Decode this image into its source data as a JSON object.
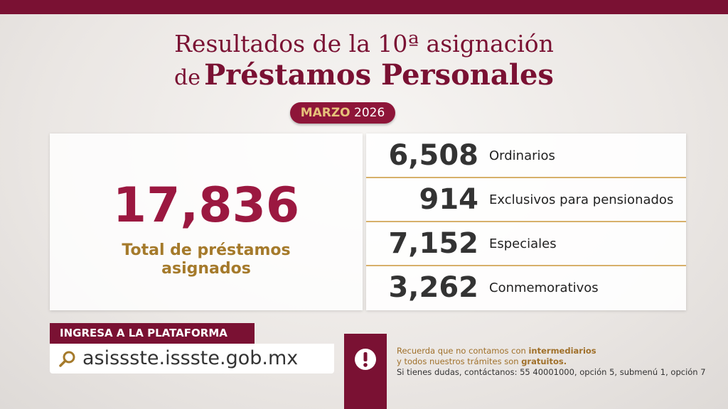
{
  "header": {
    "title_line_1": "Resultados de la 10ª asignación",
    "title_line_2_prefix": "de",
    "title_line_2_main": "Préstamos Personales",
    "month": "MARZO",
    "year": "2026"
  },
  "total": {
    "value": "17,836",
    "label": "Total de préstamos asignados"
  },
  "breakdown": [
    {
      "value": "6,508",
      "label": "Ordinarios"
    },
    {
      "value": "914",
      "label": "Exclusivos para pensionados"
    },
    {
      "value": "7,152",
      "label": "Especiales"
    },
    {
      "value": "3,262",
      "label": "Conmemorativos"
    }
  ],
  "platform": {
    "label": "INGRESA A LA PLATAFORMA",
    "url": "asissste.issste.gob.mx"
  },
  "notice": {
    "line_1": "Recuerda que no contamos con",
    "line_1_bold": "intermediarios",
    "line_2": "y todos nuestros trámites son",
    "line_2_bold": "gratuitos.",
    "contact": "Si tienes dudas, contáctanos: 55 40001000, opción 5, submenú 1, opción 7"
  }
}
